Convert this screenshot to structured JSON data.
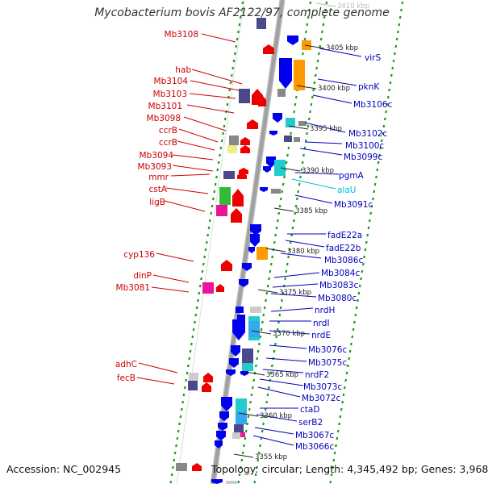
{
  "title": "Mycobacterium bovis AF2122/97, complete genome",
  "accession": "Accession: NC_002945",
  "summary": "Topology: circular; Length: 4,345,492 bp; Genes: 3,968",
  "colors": {
    "reverse_label": "#cc0000",
    "forward_label": "#0000bb",
    "rna_label": "#00bbdd",
    "tick_green": "#1a9a1a",
    "backbone": "#a0a0a0"
  },
  "scale_ticks": [
    {
      "label": "3410 kbp",
      "faded": true
    },
    {
      "label": "3405 kbp"
    },
    {
      "label": "3400 kbp"
    },
    {
      "label": "3395 kbp"
    },
    {
      "label": "3390 kbp"
    },
    {
      "label": "3385 kbp"
    },
    {
      "label": "3380 kbp"
    },
    {
      "label": "3375 kbp"
    },
    {
      "label": "3370 kbp"
    },
    {
      "label": "3365 kbp"
    },
    {
      "label": "3360 kbp"
    },
    {
      "label": "3355 kbp"
    }
  ],
  "left_labels": [
    "Mb3108",
    "hab",
    "Mb3104",
    "Mb3103",
    "Mb3101",
    "Mb3098",
    "ccrB",
    "ccrB",
    "Mb3094",
    "Mb3093",
    "mmr",
    "cstA",
    "ligB",
    "cyp136",
    "dinP",
    "Mb3081",
    "adhC",
    "fecB"
  ],
  "right_labels": [
    "virS",
    "pknK",
    "Mb3106c",
    "Mb3102c",
    "Mb3100c",
    "Mb3099c",
    "pgmA",
    "alaU",
    "Mb3091c",
    "fadE22a",
    "fadE22b",
    "Mb3086c",
    "Mb3084c",
    "Mb3083c",
    "Mb3080c",
    "nrdH",
    "nrdI",
    "nrdE",
    "Mb3076c",
    "Mb3075c",
    "nrdF2",
    "Mb3073c",
    "Mb3072c",
    "ctaD",
    "serB2",
    "Mb3067c",
    "Mb3066c"
  ]
}
